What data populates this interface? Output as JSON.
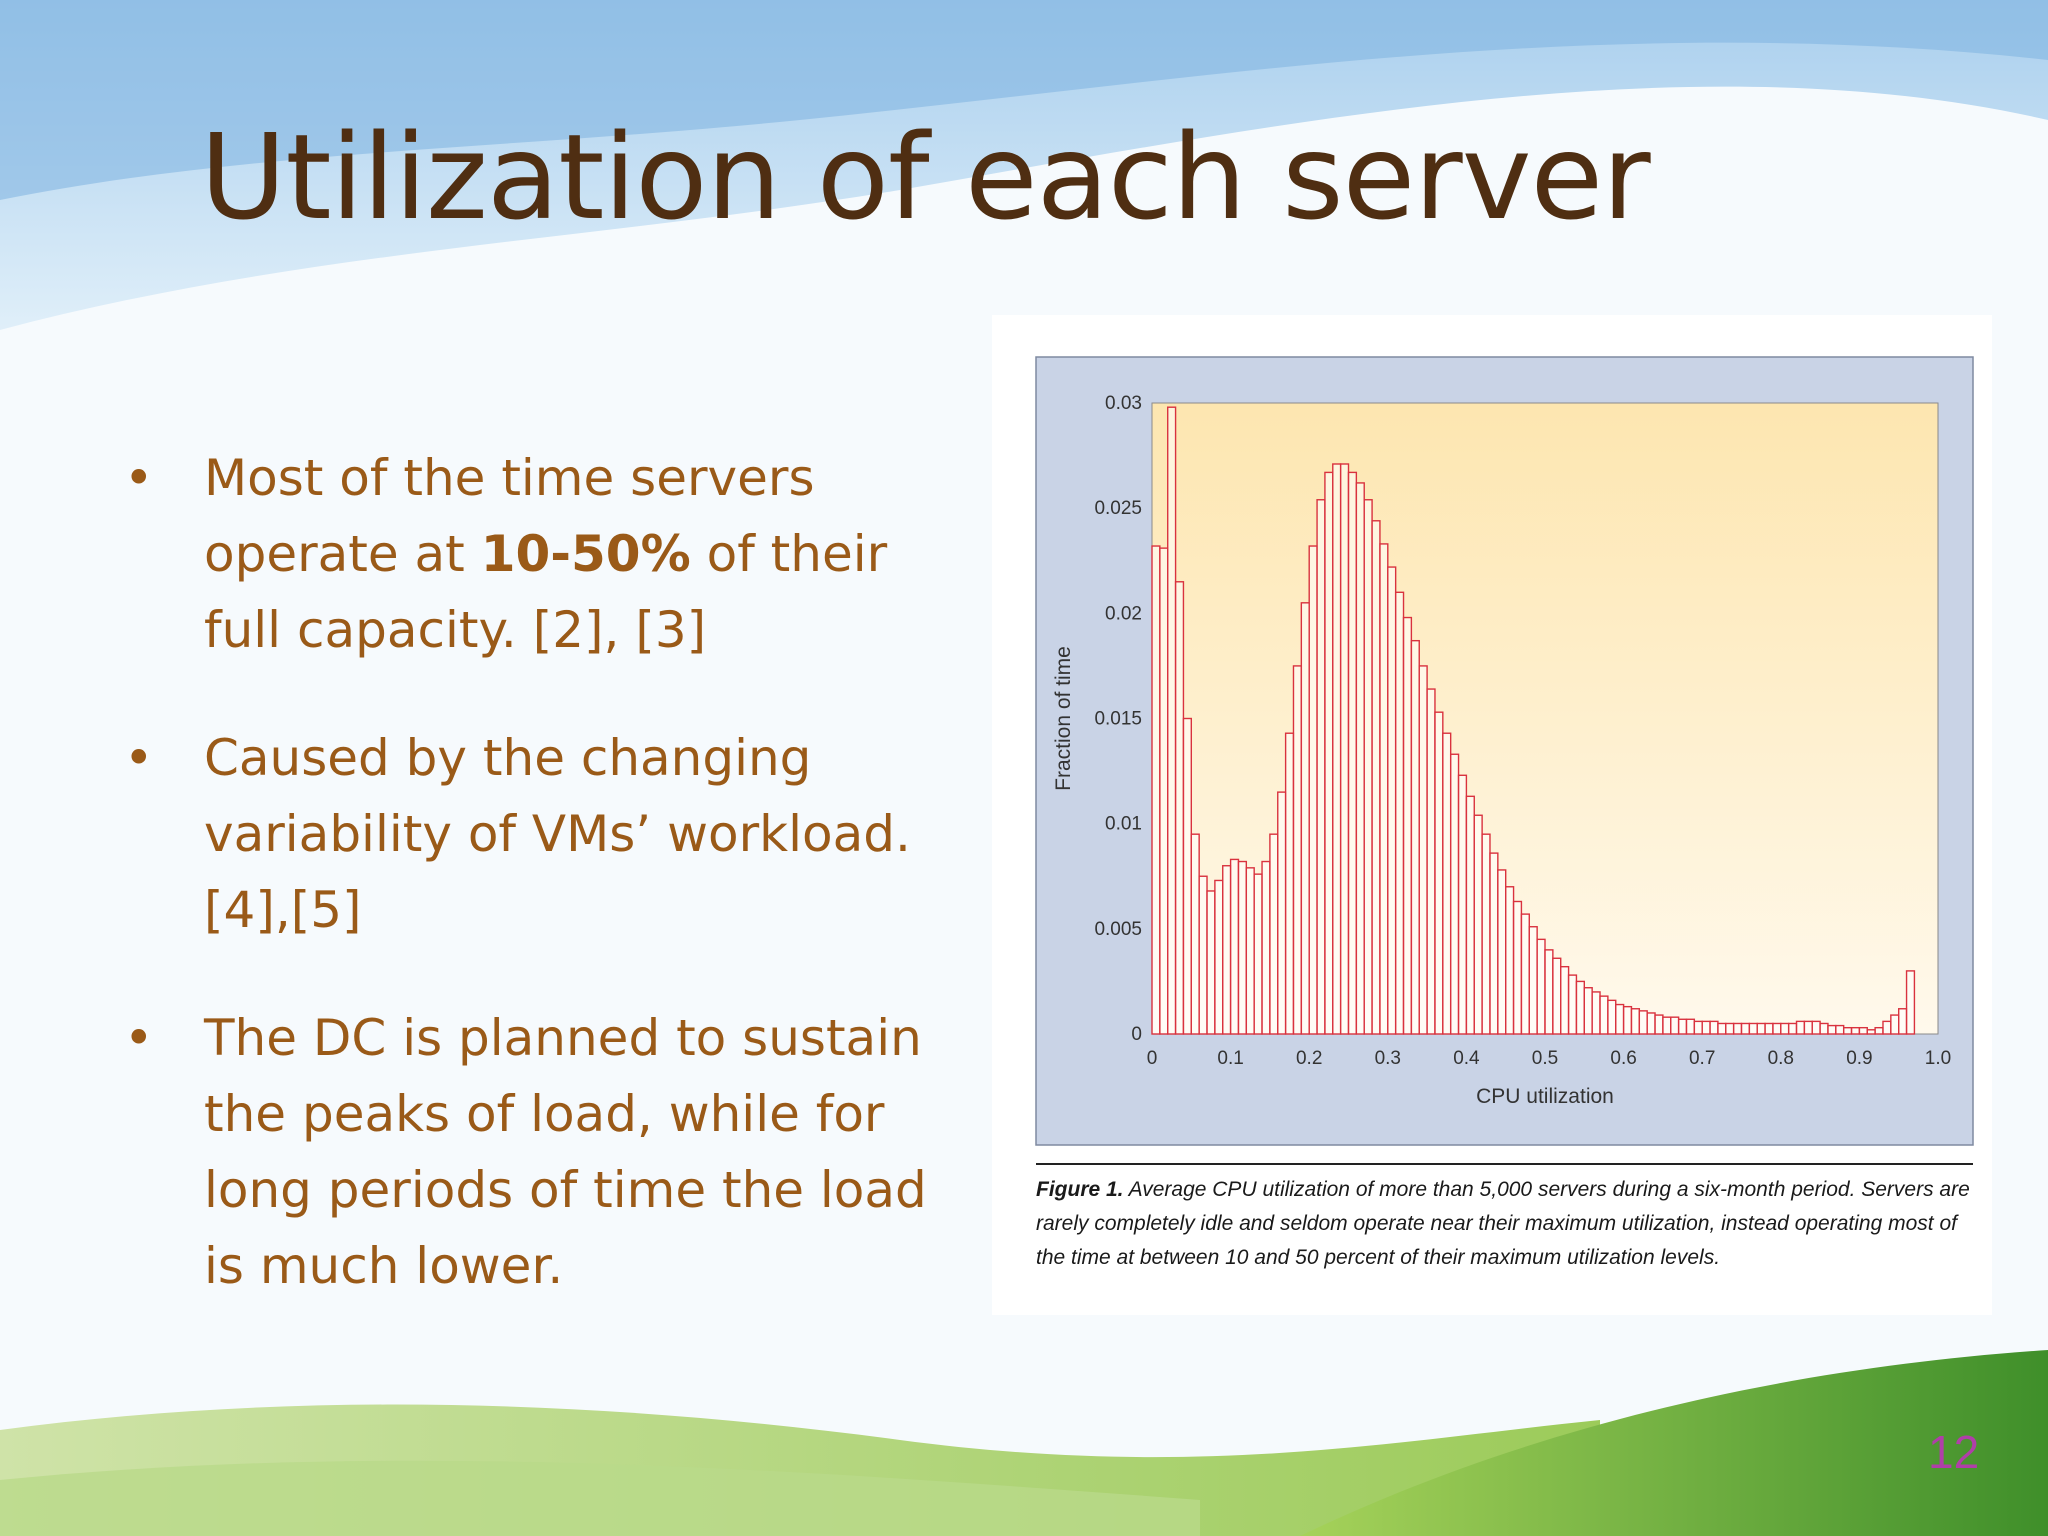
{
  "slide": {
    "title": "Utilization of each server",
    "page_number": "12",
    "bullets": [
      {
        "pre": "Most of the time servers operate at ",
        "bold": "10-50%",
        "post": " of their full capacity. [2], [3]"
      },
      {
        "pre": "Caused by the changing variability of VMs’ workload. [4],[5]",
        "bold": "",
        "post": ""
      },
      {
        "pre": "The DC is planned to sustain the peaks of load, while for long periods of time the load is much lower.",
        "bold": "",
        "post": ""
      }
    ],
    "bullet_char": "•"
  },
  "figure": {
    "caption_label": "Figure 1.",
    "caption_text": "Average CPU utilization of more than 5,000 servers during a six-month period. Servers are rarely completely idle and seldom operate near their maximum utilization, instead operating most of the time at between 10 and 50 percent of their maximum utilization levels."
  },
  "colors": {
    "title": "#4f2e12",
    "bullet_text": "#9a5a18",
    "bar_stroke": "#d9323e",
    "plot_bg_top": "#fde6b0",
    "plot_bg_bottom": "#fff9ec",
    "frame_bg": "#c9d3e6",
    "page_number": "#b03fa8"
  },
  "chart_data": {
    "type": "bar",
    "xlabel": "CPU utilization",
    "ylabel": "Fraction of time",
    "xlim": [
      0,
      1.0
    ],
    "ylim": [
      0,
      0.03
    ],
    "xticks": [
      "0",
      "0.1",
      "0.2",
      "0.3",
      "0.4",
      "0.5",
      "0.6",
      "0.7",
      "0.8",
      "0.9",
      "1.0"
    ],
    "yticks": [
      "0",
      "0.005",
      "0.01",
      "0.015",
      "0.02",
      "0.025",
      "0.03"
    ],
    "bin_width": 0.01,
    "values": [
      0.0232,
      0.0231,
      0.0298,
      0.0215,
      0.015,
      0.0095,
      0.0075,
      0.0068,
      0.0073,
      0.008,
      0.0083,
      0.0082,
      0.0079,
      0.0076,
      0.0082,
      0.0095,
      0.0115,
      0.0143,
      0.0175,
      0.0205,
      0.0232,
      0.0254,
      0.0267,
      0.0271,
      0.0271,
      0.0267,
      0.0262,
      0.0254,
      0.0244,
      0.0233,
      0.0222,
      0.021,
      0.0198,
      0.0187,
      0.0175,
      0.0164,
      0.0153,
      0.0143,
      0.0133,
      0.0123,
      0.0113,
      0.0104,
      0.0095,
      0.0086,
      0.0078,
      0.007,
      0.0063,
      0.0057,
      0.0051,
      0.0045,
      0.004,
      0.0036,
      0.0032,
      0.0028,
      0.0025,
      0.0022,
      0.002,
      0.0018,
      0.0016,
      0.0014,
      0.0013,
      0.0012,
      0.0011,
      0.001,
      0.0009,
      0.0008,
      0.0008,
      0.0007,
      0.0007,
      0.0006,
      0.0006,
      0.0006,
      0.0005,
      0.0005,
      0.0005,
      0.0005,
      0.0005,
      0.0005,
      0.0005,
      0.0005,
      0.0005,
      0.0005,
      0.0006,
      0.0006,
      0.0006,
      0.0005,
      0.0004,
      0.0004,
      0.0003,
      0.0003,
      0.0003,
      0.0002,
      0.0003,
      0.0006,
      0.0009,
      0.0012,
      0.003
    ]
  }
}
